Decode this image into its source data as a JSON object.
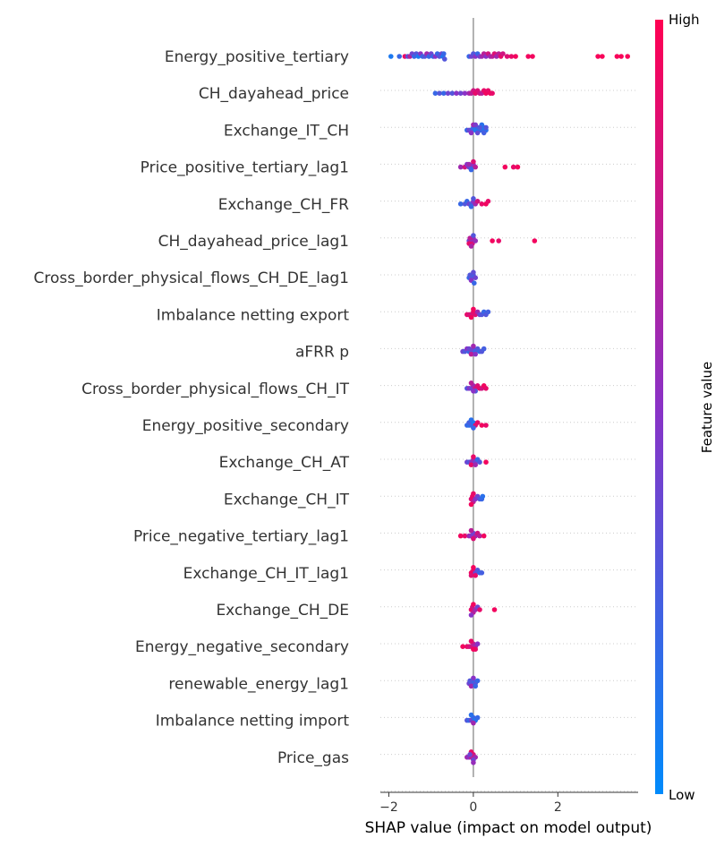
{
  "chart_data": {
    "type": "scatter",
    "subtype": "shap-beeswarm",
    "xlabel": "SHAP value (impact on model output)",
    "xlim": [
      -2.2,
      3.9
    ],
    "x_ticks": [
      -2,
      0,
      2
    ],
    "x_tick_labels": [
      "−2",
      "0",
      "2"
    ],
    "zero_line": 0,
    "grid": false,
    "colorbar": {
      "title": "Feature value",
      "high_label": "High",
      "low_label": "Low",
      "low_color": "#008bfb",
      "mid_color": "#8a32c6",
      "high_color": "#ff0052",
      "placement": "right"
    },
    "features": [
      {
        "name": "Energy_positive_tertiary",
        "points": [
          [
            -1.95,
            0.1
          ],
          [
            -1.75,
            0.2
          ],
          [
            -1.62,
            0.9
          ],
          [
            -1.55,
            0.3
          ],
          [
            -1.5,
            0.7
          ],
          [
            -1.45,
            0.4
          ],
          [
            -1.4,
            0.2
          ],
          [
            -1.35,
            0.3
          ],
          [
            -1.3,
            0.1
          ],
          [
            -1.25,
            0.5
          ],
          [
            -1.2,
            0.2
          ],
          [
            -1.15,
            0.3
          ],
          [
            -1.1,
            0.6
          ],
          [
            -1.05,
            0.2
          ],
          [
            -1.0,
            0.4
          ],
          [
            -0.95,
            0.2
          ],
          [
            -0.9,
            0.5
          ],
          [
            -0.85,
            0.2
          ],
          [
            -0.8,
            0.3
          ],
          [
            -0.75,
            0.4
          ],
          [
            -0.72,
            0.1
          ],
          [
            -0.7,
            0.2
          ],
          [
            -0.68,
            0.3
          ],
          [
            -0.1,
            0.2
          ],
          [
            -0.05,
            0.4
          ],
          [
            0.0,
            0.3
          ],
          [
            0.05,
            0.5
          ],
          [
            0.1,
            0.2
          ],
          [
            0.15,
            0.4
          ],
          [
            0.2,
            0.6
          ],
          [
            0.25,
            0.7
          ],
          [
            0.3,
            0.5
          ],
          [
            0.35,
            0.8
          ],
          [
            0.4,
            0.6
          ],
          [
            0.45,
            0.7
          ],
          [
            0.5,
            0.85
          ],
          [
            0.55,
            0.6
          ],
          [
            0.6,
            0.7
          ],
          [
            0.65,
            0.9
          ],
          [
            0.7,
            0.8
          ],
          [
            0.8,
            0.85
          ],
          [
            0.9,
            0.9
          ],
          [
            1.0,
            0.95
          ],
          [
            1.3,
            0.95
          ],
          [
            1.4,
            0.95
          ],
          [
            2.95,
            0.97
          ],
          [
            3.05,
            0.97
          ],
          [
            3.4,
            0.97
          ],
          [
            3.5,
            0.97
          ],
          [
            3.65,
            0.97
          ]
        ]
      },
      {
        "name": "CH_dayahead_price",
        "points": [
          [
            -0.9,
            0.2
          ],
          [
            -0.8,
            0.3
          ],
          [
            -0.7,
            0.2
          ],
          [
            -0.6,
            0.4
          ],
          [
            -0.5,
            0.3
          ],
          [
            -0.4,
            0.5
          ],
          [
            -0.3,
            0.4
          ],
          [
            -0.2,
            0.5
          ],
          [
            -0.1,
            0.6
          ],
          [
            -0.05,
            0.7
          ],
          [
            0.0,
            0.8
          ],
          [
            0.05,
            0.9
          ],
          [
            0.1,
            0.85
          ],
          [
            0.15,
            0.8
          ],
          [
            0.2,
            0.7
          ],
          [
            0.25,
            0.9
          ],
          [
            0.3,
            0.95
          ],
          [
            0.35,
            0.9
          ],
          [
            0.4,
            0.95
          ],
          [
            0.45,
            0.9
          ]
        ]
      },
      {
        "name": "Exchange_IT_CH",
        "points": [
          [
            -0.15,
            0.2
          ],
          [
            -0.1,
            0.4
          ],
          [
            -0.05,
            0.3
          ],
          [
            0.0,
            0.2
          ],
          [
            0.05,
            0.1
          ],
          [
            0.1,
            0.2
          ],
          [
            0.15,
            0.1
          ],
          [
            0.2,
            0.2
          ],
          [
            0.25,
            0.1
          ],
          [
            0.3,
            0.15
          ],
          [
            0.3,
            0.3
          ],
          [
            0.25,
            0.25
          ],
          [
            0.2,
            0.15
          ],
          [
            0.15,
            0.3
          ],
          [
            0.1,
            0.35
          ],
          [
            -0.05,
            0.5
          ],
          [
            0.0,
            0.6
          ],
          [
            0.05,
            0.45
          ]
        ]
      },
      {
        "name": "Price_positive_tertiary_lag1",
        "points": [
          [
            -0.3,
            0.6
          ],
          [
            -0.2,
            0.8
          ],
          [
            -0.15,
            0.5
          ],
          [
            -0.1,
            0.4
          ],
          [
            -0.05,
            0.3
          ],
          [
            0.0,
            0.5
          ],
          [
            0.05,
            0.7
          ],
          [
            0.75,
            0.95
          ],
          [
            0.95,
            0.9
          ],
          [
            1.05,
            0.95
          ],
          [
            -0.05,
            0.2
          ],
          [
            -0.1,
            0.6
          ],
          [
            0.0,
            0.85
          ]
        ]
      },
      {
        "name": "Exchange_CH_FR",
        "points": [
          [
            -0.3,
            0.2
          ],
          [
            -0.2,
            0.3
          ],
          [
            -0.15,
            0.2
          ],
          [
            -0.1,
            0.4
          ],
          [
            -0.05,
            0.3
          ],
          [
            0.0,
            0.5
          ],
          [
            0.05,
            0.6
          ],
          [
            0.1,
            0.8
          ],
          [
            0.2,
            0.9
          ],
          [
            0.3,
            0.95
          ],
          [
            0.35,
            0.9
          ],
          [
            -0.05,
            0.2
          ],
          [
            0.0,
            0.3
          ]
        ]
      },
      {
        "name": "CH_dayahead_price_lag1",
        "points": [
          [
            -0.1,
            0.4
          ],
          [
            -0.05,
            0.5
          ],
          [
            0.0,
            0.6
          ],
          [
            -0.08,
            0.7
          ],
          [
            -0.02,
            0.8
          ],
          [
            0.05,
            0.55
          ],
          [
            -0.1,
            0.9
          ],
          [
            0.0,
            0.3
          ],
          [
            0.45,
            0.95
          ],
          [
            0.6,
            0.9
          ],
          [
            1.45,
            0.95
          ],
          [
            -0.05,
            0.65
          ]
        ]
      },
      {
        "name": "Cross_border_physical_flows_CH_DE_lag1",
        "points": [
          [
            -0.1,
            0.2
          ],
          [
            -0.05,
            0.3
          ],
          [
            0.0,
            0.25
          ],
          [
            0.05,
            0.4
          ],
          [
            -0.05,
            0.5
          ],
          [
            0.0,
            0.35
          ],
          [
            -0.08,
            0.3
          ],
          [
            0.02,
            0.2
          ]
        ]
      },
      {
        "name": "Imbalance netting export",
        "points": [
          [
            -0.15,
            0.9
          ],
          [
            -0.1,
            0.85
          ],
          [
            -0.05,
            0.8
          ],
          [
            0.0,
            0.9
          ],
          [
            0.05,
            0.85
          ],
          [
            0.1,
            0.6
          ],
          [
            0.15,
            0.4
          ],
          [
            0.2,
            0.3
          ],
          [
            0.25,
            0.2
          ],
          [
            0.3,
            0.3
          ],
          [
            0.35,
            0.25
          ],
          [
            -0.05,
            0.95
          ],
          [
            0.0,
            0.95
          ]
        ]
      },
      {
        "name": "aFRR p",
        "points": [
          [
            -0.25,
            0.4
          ],
          [
            -0.2,
            0.3
          ],
          [
            -0.15,
            0.5
          ],
          [
            -0.1,
            0.2
          ],
          [
            -0.05,
            0.3
          ],
          [
            0.0,
            0.4
          ],
          [
            0.05,
            0.2
          ],
          [
            0.1,
            0.3
          ],
          [
            0.15,
            0.2
          ],
          [
            0.2,
            0.3
          ],
          [
            0.25,
            0.25
          ],
          [
            -0.05,
            0.7
          ],
          [
            0.0,
            0.6
          ],
          [
            0.05,
            0.5
          ],
          [
            -0.1,
            0.4
          ]
        ]
      },
      {
        "name": "Cross_border_physical_flows_CH_IT",
        "points": [
          [
            -0.15,
            0.3
          ],
          [
            -0.1,
            0.5
          ],
          [
            -0.05,
            0.4
          ],
          [
            0.0,
            0.6
          ],
          [
            0.05,
            0.8
          ],
          [
            0.1,
            0.85
          ],
          [
            0.15,
            0.9
          ],
          [
            0.2,
            0.8
          ],
          [
            0.25,
            0.95
          ],
          [
            0.3,
            0.9
          ],
          [
            0.05,
            0.3
          ],
          [
            0.0,
            0.5
          ],
          [
            -0.05,
            0.7
          ]
        ]
      },
      {
        "name": "Energy_positive_secondary",
        "points": [
          [
            -0.15,
            0.2
          ],
          [
            -0.1,
            0.15
          ],
          [
            -0.05,
            0.2
          ],
          [
            0.0,
            0.1
          ],
          [
            0.05,
            0.85
          ],
          [
            0.1,
            0.9
          ],
          [
            0.2,
            0.95
          ],
          [
            0.3,
            0.9
          ],
          [
            -0.1,
            0.25
          ],
          [
            0.0,
            0.2
          ],
          [
            -0.05,
            0.15
          ]
        ]
      },
      {
        "name": "Exchange_CH_AT",
        "points": [
          [
            -0.15,
            0.4
          ],
          [
            -0.1,
            0.3
          ],
          [
            -0.05,
            0.5
          ],
          [
            0.0,
            0.6
          ],
          [
            0.05,
            0.4
          ],
          [
            0.1,
            0.2
          ],
          [
            0.15,
            0.3
          ],
          [
            0.3,
            0.95
          ],
          [
            -0.05,
            0.9
          ],
          [
            0.0,
            0.9
          ],
          [
            0.05,
            0.6
          ]
        ]
      },
      {
        "name": "Exchange_CH_IT",
        "points": [
          [
            -0.05,
            0.85
          ],
          [
            -0.02,
            0.9
          ],
          [
            0.0,
            0.7
          ],
          [
            0.05,
            0.5
          ],
          [
            0.1,
            0.4
          ],
          [
            0.15,
            0.3
          ],
          [
            0.2,
            0.2
          ],
          [
            0.22,
            0.15
          ],
          [
            0.0,
            0.9
          ],
          [
            -0.05,
            0.95
          ]
        ]
      },
      {
        "name": "Price_negative_tertiary_lag1",
        "points": [
          [
            -0.3,
            0.95
          ],
          [
            -0.2,
            0.9
          ],
          [
            -0.1,
            0.6
          ],
          [
            -0.05,
            0.5
          ],
          [
            0.0,
            0.4
          ],
          [
            0.05,
            0.6
          ],
          [
            0.1,
            0.8
          ],
          [
            0.15,
            0.7
          ],
          [
            0.25,
            0.95
          ],
          [
            0.0,
            0.85
          ],
          [
            -0.05,
            0.7
          ]
        ]
      },
      {
        "name": "Exchange_CH_IT_lag1",
        "points": [
          [
            -0.05,
            0.95
          ],
          [
            0.0,
            0.9
          ],
          [
            0.05,
            0.4
          ],
          [
            0.1,
            0.3
          ],
          [
            0.15,
            0.2
          ],
          [
            0.2,
            0.25
          ],
          [
            -0.05,
            0.85
          ],
          [
            0.0,
            0.95
          ],
          [
            0.05,
            0.9
          ]
        ]
      },
      {
        "name": "Exchange_CH_DE",
        "points": [
          [
            -0.05,
            0.9
          ],
          [
            -0.02,
            0.8
          ],
          [
            0.0,
            0.7
          ],
          [
            0.05,
            0.6
          ],
          [
            0.1,
            0.4
          ],
          [
            0.15,
            0.9
          ],
          [
            0.5,
            0.95
          ],
          [
            0.0,
            0.95
          ],
          [
            -0.05,
            0.5
          ]
        ]
      },
      {
        "name": "Energy_negative_secondary",
        "points": [
          [
            -0.25,
            0.95
          ],
          [
            -0.15,
            0.9
          ],
          [
            -0.1,
            0.85
          ],
          [
            -0.05,
            0.8
          ],
          [
            0.0,
            0.7
          ],
          [
            0.05,
            0.6
          ],
          [
            0.1,
            0.5
          ],
          [
            0.05,
            0.9
          ],
          [
            0.0,
            0.95
          ],
          [
            -0.05,
            0.9
          ]
        ]
      },
      {
        "name": "renewable_energy_lag1",
        "points": [
          [
            -0.1,
            0.4
          ],
          [
            -0.05,
            0.3
          ],
          [
            0.0,
            0.2
          ],
          [
            0.05,
            0.3
          ],
          [
            0.1,
            0.2
          ],
          [
            -0.05,
            0.6
          ],
          [
            0.0,
            0.5
          ],
          [
            0.05,
            0.2
          ],
          [
            -0.08,
            0.3
          ]
        ]
      },
      {
        "name": "Imbalance netting import",
        "points": [
          [
            -0.15,
            0.3
          ],
          [
            -0.1,
            0.2
          ],
          [
            -0.05,
            0.4
          ],
          [
            0.0,
            0.2
          ],
          [
            0.05,
            0.1
          ],
          [
            0.1,
            0.2
          ],
          [
            0.0,
            0.6
          ],
          [
            -0.05,
            0.15
          ]
        ]
      },
      {
        "name": "Price_gas",
        "points": [
          [
            -0.15,
            0.6
          ],
          [
            -0.1,
            0.5
          ],
          [
            -0.05,
            0.7
          ],
          [
            0.0,
            0.8
          ],
          [
            0.05,
            0.6
          ],
          [
            0.0,
            0.4
          ],
          [
            -0.05,
            0.9
          ],
          [
            0.0,
            0.55
          ],
          [
            -0.08,
            0.4
          ]
        ]
      }
    ]
  }
}
